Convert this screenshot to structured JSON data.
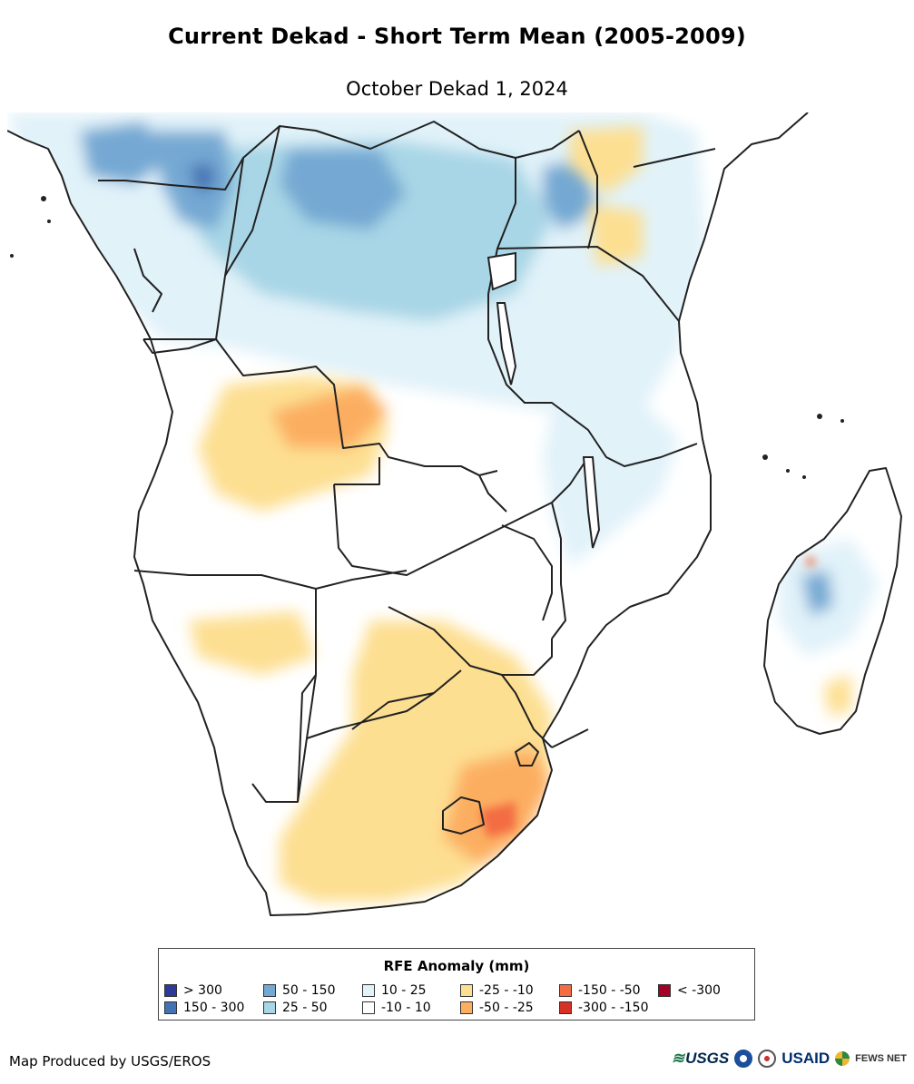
{
  "title": "Current Dekad - Short Term Mean (2005-2009)",
  "subtitle": "October Dekad 1, 2024",
  "legend": {
    "title": "RFE Anomaly (mm)",
    "items": [
      {
        "label": "> 300",
        "color": "#2e3a97"
      },
      {
        "label": "150 - 300",
        "color": "#4472b4"
      },
      {
        "label": "50 - 150",
        "color": "#74a9d3"
      },
      {
        "label": "25 - 50",
        "color": "#a8d6e6"
      },
      {
        "label": "10 - 25",
        "color": "#e1f2f9"
      },
      {
        "label": "-10 - 10",
        "color": "#ffffff"
      },
      {
        "label": "-25 - -10",
        "color": "#fddf92"
      },
      {
        "label": "-50 - -25",
        "color": "#fcae61"
      },
      {
        "label": "-150 - -50",
        "color": "#f36c43"
      },
      {
        "label": "-300 - -150",
        "color": "#d63027"
      },
      {
        "label": "< -300",
        "color": "#a50026"
      }
    ]
  },
  "footer": {
    "credit": "Map Produced by USGS/EROS",
    "logos": {
      "usgs": "USGS",
      "usaid": "USAID",
      "fews": "FEWS NET"
    }
  }
}
